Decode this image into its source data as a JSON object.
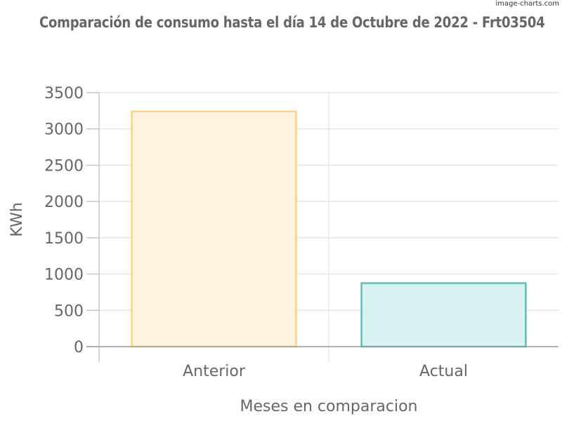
{
  "watermark": "image-charts.com",
  "chart_data": {
    "type": "bar",
    "title": "Comparación de consumo hasta el día 14 de Octubre de 2022 - Frt03504",
    "categories": [
      "Anterior",
      "Actual"
    ],
    "values": [
      3240,
      875
    ],
    "xlabel": "Meses en comparacion",
    "ylabel": "KWh",
    "ylim": [
      0,
      3500
    ],
    "yticks": [
      0,
      500,
      1000,
      1500,
      2000,
      2500,
      3000,
      3500
    ],
    "grid": true,
    "legend": "none",
    "colors": {
      "fills": [
        "#fef3de",
        "#d9f1f1"
      ],
      "strokes": [
        "#fbd280",
        "#5dbdbd"
      ],
      "grid": "#e2e2e2",
      "axis": "#bbbbbb",
      "text": "#666666"
    }
  }
}
